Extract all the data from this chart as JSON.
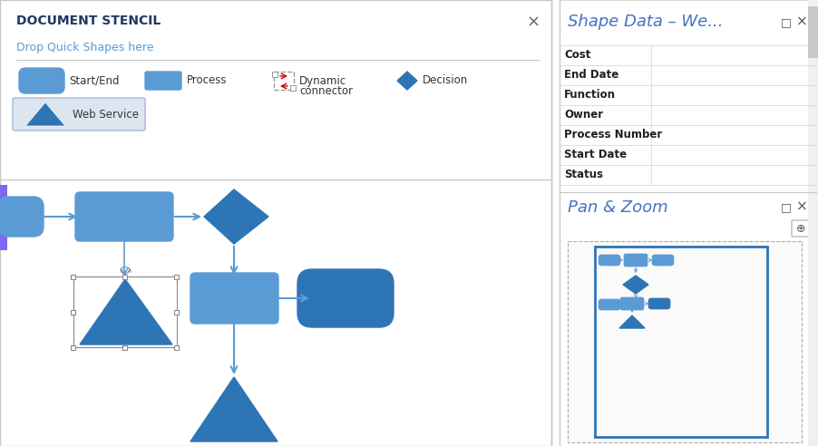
{
  "bg_color": "#ffffff",
  "left_panel_bg": "#ffffff",
  "left_panel_border": "#c8c8c8",
  "right_panel_bg": "#ffffff",
  "right_panel_border": "#c8c8c8",
  "doc_stencil_title": "DOCUMENT STENCIL",
  "doc_stencil_title_color": "#1f3864",
  "drop_shapes_text": "Drop Quick Shapes here",
  "drop_shapes_color": "#5b9bd5",
  "close_x_color": "#666666",
  "shape_label_color": "#333333",
  "shape_fill_blue": "#5b9bd5",
  "shape_fill_dark_blue": "#2e75b6",
  "shape_stroke_blue": "#2e75b6",
  "arrow_color": "#5b9bd5",
  "web_service_button_bg": "#dce6f1",
  "web_service_button_border": "#aab7d4",
  "right_title1": "Shape Data – We...",
  "right_title1_color": "#4472c4",
  "right_title2": "Pan & Zoom",
  "right_title2_color": "#4472c4",
  "table_rows": [
    "Cost",
    "End Date",
    "Function",
    "Owner",
    "Process Number",
    "Start Date",
    "Status"
  ],
  "table_label_color": "#1f1f1f",
  "divider_color": "#c8c8c8",
  "scrollbar_color": "#c8c8c8",
  "mini_map_border": "#2e75b6",
  "mini_map_dash_border": "#888888",
  "purple_strip_color": "#7b68ee"
}
